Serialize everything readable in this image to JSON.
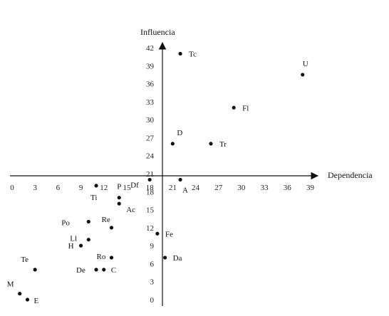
{
  "chart_data": {
    "type": "scatter",
    "title": "",
    "xlabel": "Dependencia",
    "ylabel": "Influencia",
    "x_ticks": [
      0,
      3,
      6,
      9,
      12,
      15,
      18,
      21,
      24,
      27,
      30,
      33,
      36,
      39
    ],
    "y_ticks": [
      0,
      3,
      6,
      9,
      12,
      15,
      18,
      21,
      24,
      27,
      30,
      33,
      36,
      39,
      42
    ],
    "xlim": [
      0,
      39
    ],
    "grid": false,
    "legend": "none",
    "points": [
      {
        "label": "Tc",
        "x": 22,
        "y": 41
      },
      {
        "label": "U",
        "x": 38,
        "y": 37.5
      },
      {
        "label": "Fl",
        "x": 29,
        "y": 32
      },
      {
        "label": "D",
        "x": 21,
        "y": 26
      },
      {
        "label": "Tr",
        "x": 26,
        "y": 26
      },
      {
        "label": "Df",
        "x": 18,
        "y": 20
      },
      {
        "label": "A",
        "x": 22,
        "y": 20
      },
      {
        "label": "Ti",
        "x": 11,
        "y": 19
      },
      {
        "label": "P",
        "x": 14,
        "y": 17
      },
      {
        "label": "Ac",
        "x": 14,
        "y": 16
      },
      {
        "label": "Po",
        "x": 10,
        "y": 13
      },
      {
        "label": "Re",
        "x": 13,
        "y": 12
      },
      {
        "label": "Ll",
        "x": 10,
        "y": 10
      },
      {
        "label": "H",
        "x": 9,
        "y": 9
      },
      {
        "label": "Fe",
        "x": 19,
        "y": 11
      },
      {
        "label": "Ro",
        "x": 13,
        "y": 7
      },
      {
        "label": "Da",
        "x": 20,
        "y": 7
      },
      {
        "label": "De",
        "x": 11,
        "y": 5
      },
      {
        "label": "C",
        "x": 12,
        "y": 5
      },
      {
        "label": "Te",
        "x": 3,
        "y": 5
      },
      {
        "label": "M",
        "x": 1,
        "y": 1
      },
      {
        "label": "E",
        "x": 2,
        "y": 0
      }
    ]
  }
}
